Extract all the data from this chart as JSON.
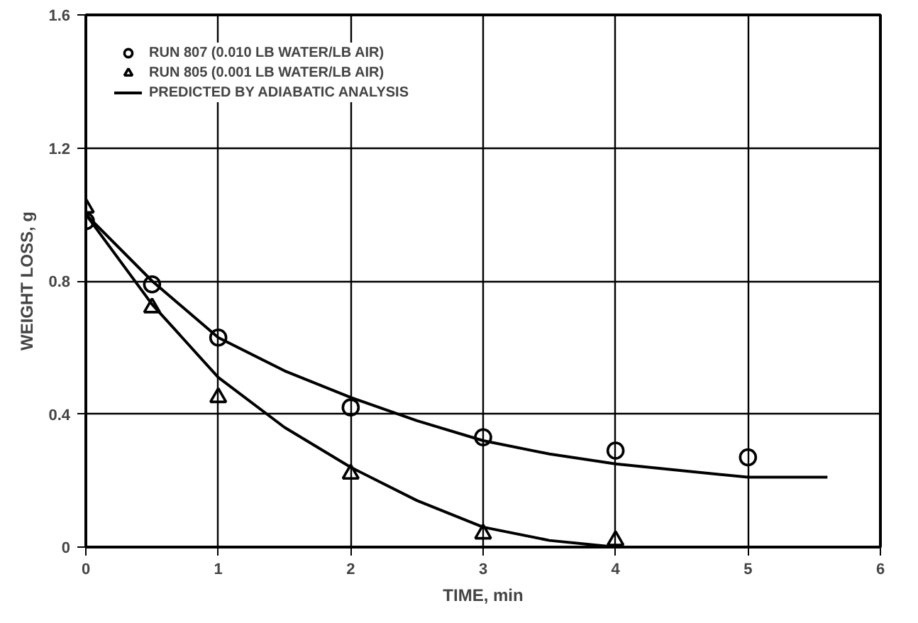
{
  "chart_data": {
    "type": "scatter",
    "xlabel": "TIME, min",
    "ylabel": "WEIGHT LOSS, g",
    "xlim": [
      0,
      6
    ],
    "ylim": [
      0,
      1.6
    ],
    "xticks": [
      0,
      1,
      2,
      3,
      4,
      5,
      6
    ],
    "yticks": [
      0,
      {
        "value": 0.4,
        "label": "0.4"
      },
      {
        "value": 0.8,
        "label": "0.8"
      },
      {
        "value": 1.2,
        "label": "1.2"
      },
      {
        "value": 1.6,
        "label": "1.6"
      }
    ],
    "grid": true,
    "legend": "top left",
    "series": [
      {
        "name": "RUN 807 (0.010 LB WATER/LB AIR)",
        "marker": "circle",
        "color": "#000000",
        "x": [
          0,
          0.5,
          1,
          2,
          3,
          4,
          5
        ],
        "values": [
          0.98,
          0.79,
          0.63,
          0.42,
          0.33,
          0.29,
          0.27
        ]
      },
      {
        "name": "RUN 805 (0.001 LB WATER/LB AIR)",
        "marker": "triangle",
        "color": "#000000",
        "x": [
          0,
          0.5,
          1,
          2,
          3,
          4
        ],
        "values": [
          1.02,
          0.72,
          0.45,
          0.22,
          0.04,
          0.02
        ]
      },
      {
        "name": "PREDICTED BY ADIABATIC ANALYSIS",
        "type": "line",
        "color": "#000000",
        "x": [
          0,
          0.5,
          1,
          1.5,
          2,
          2.5,
          3,
          3.5,
          4,
          4.5,
          5,
          5.6
        ],
        "values": [
          1.0,
          0.8,
          0.63,
          0.53,
          0.45,
          0.38,
          0.32,
          0.28,
          0.25,
          0.23,
          0.21,
          0.21
        ]
      },
      {
        "type": "line",
        "color": "#000000",
        "x": [
          0,
          0.5,
          1,
          1.5,
          2,
          2.5,
          3,
          3.5,
          4
        ],
        "values": [
          1.0,
          0.73,
          0.51,
          0.36,
          0.24,
          0.14,
          0.06,
          0.02,
          0.0
        ]
      }
    ]
  }
}
